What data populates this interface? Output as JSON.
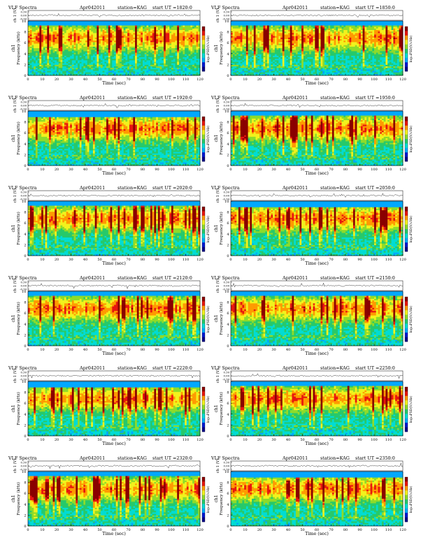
{
  "chart_data": [
    {
      "type": "heatmap",
      "title": "VLF Spectra",
      "date": "Apr042011",
      "station": "station=KAG",
      "start": "start  UT  =1820:0",
      "xlabel": "Time  (sec)",
      "ylabel_freq": "Frequency  (kHz)",
      "ylabel_ch": "ch1",
      "ylabel_v": "ch 1 (V)",
      "colorbar_label": "log₁₀PSD(V/√Hz)",
      "x_ticks": [
        "0",
        "10",
        "20",
        "30",
        "40",
        "50",
        "60",
        "70",
        "80",
        "90",
        "100",
        "110",
        "120"
      ],
      "y_ticks": [
        "0",
        "2",
        "4",
        "6",
        "8",
        "10"
      ],
      "v_ticks": [
        "0.30",
        "0.00",
        "-0.30"
      ],
      "xlim": [
        0,
        120
      ],
      "ylim": [
        0,
        10
      ]
    },
    {
      "type": "heatmap",
      "title": "VLF Spectra",
      "date": "Apr042011",
      "station": "station=KAG",
      "start": "start  UT  =1850:0",
      "xlabel": "Time  (sec)",
      "ylabel_freq": "Frequency  (kHz)",
      "ylabel_ch": "ch1",
      "ylabel_v": "ch 1 (V)",
      "colorbar_label": "log₁₀PSD(V/√Hz)",
      "x_ticks": [
        "0",
        "10",
        "20",
        "30",
        "40",
        "50",
        "60",
        "70",
        "80",
        "90",
        "100",
        "110",
        "120"
      ],
      "y_ticks": [
        "0",
        "2",
        "4",
        "6",
        "8",
        "10"
      ],
      "v_ticks": [
        "0.30",
        "0.00",
        "-0.30"
      ],
      "xlim": [
        0,
        120
      ],
      "ylim": [
        0,
        10
      ]
    },
    {
      "type": "heatmap",
      "title": "VLF Spectra",
      "date": "Apr042011",
      "station": "station=KAG",
      "start": "start  UT  =1920:0",
      "xlabel": "Time  (sec)",
      "ylabel_freq": "Frequency  (kHz)",
      "ylabel_ch": "ch1",
      "ylabel_v": "ch 1 (V)",
      "colorbar_label": "log₁₀PSD(V/√Hz)",
      "x_ticks": [
        "0",
        "10",
        "20",
        "30",
        "40",
        "50",
        "60",
        "70",
        "80",
        "90",
        "100",
        "110",
        "120"
      ],
      "y_ticks": [
        "0",
        "2",
        "4",
        "6",
        "8",
        "10"
      ],
      "v_ticks": [
        "0.30",
        "0.00",
        "-0.30"
      ],
      "xlim": [
        0,
        120
      ],
      "ylim": [
        0,
        10
      ]
    },
    {
      "type": "heatmap",
      "title": "VLF Spectra",
      "date": "Apr042011",
      "station": "station=KAG",
      "start": "start  UT  =1950:0",
      "xlabel": "Time  (sec)",
      "ylabel_freq": "Frequency  (kHz)",
      "ylabel_ch": "ch1",
      "ylabel_v": "ch 1 (V)",
      "colorbar_label": "log₁₀PSD(V/√Hz)",
      "x_ticks": [
        "0",
        "10",
        "20",
        "30",
        "40",
        "50",
        "60",
        "70",
        "80",
        "90",
        "100",
        "110",
        "120"
      ],
      "y_ticks": [
        "0",
        "2",
        "4",
        "6",
        "8",
        "10"
      ],
      "v_ticks": [
        "0.30",
        "0.00",
        "-0.30"
      ],
      "xlim": [
        0,
        120
      ],
      "ylim": [
        0,
        10
      ]
    },
    {
      "type": "heatmap",
      "title": "VLF Spectra",
      "date": "Apr042011",
      "station": "station=KAG",
      "start": "start  UT  =2020:0",
      "xlabel": "Time  (sec)",
      "ylabel_freq": "Frequency  (kHz)",
      "ylabel_ch": "ch1",
      "ylabel_v": "ch 1 (V)",
      "colorbar_label": "log₁₀PSD(V/√Hz)",
      "x_ticks": [
        "0",
        "10",
        "20",
        "30",
        "40",
        "50",
        "60",
        "70",
        "80",
        "90",
        "100",
        "110",
        "120"
      ],
      "y_ticks": [
        "0",
        "2",
        "4",
        "6",
        "8",
        "10"
      ],
      "v_ticks": [
        "0.30",
        "0.00",
        "-0.30"
      ],
      "xlim": [
        0,
        120
      ],
      "ylim": [
        0,
        10
      ]
    },
    {
      "type": "heatmap",
      "title": "VLF Spectra",
      "date": "Apr042011",
      "station": "station=KAG",
      "start": "start  UT  =2050:0",
      "xlabel": "Time  (sec)",
      "ylabel_freq": "Frequency  (kHz)",
      "ylabel_ch": "ch1",
      "ylabel_v": "ch 1 (V)",
      "colorbar_label": "log₁₀PSD(V/√Hz)",
      "x_ticks": [
        "0",
        "10",
        "20",
        "30",
        "40",
        "50",
        "60",
        "70",
        "80",
        "90",
        "100",
        "110",
        "120"
      ],
      "y_ticks": [
        "0",
        "2",
        "4",
        "6",
        "8",
        "10"
      ],
      "v_ticks": [
        "0.30",
        "0.00",
        "-0.30"
      ],
      "xlim": [
        0,
        120
      ],
      "ylim": [
        0,
        10
      ]
    },
    {
      "type": "heatmap",
      "title": "VLF Spectra",
      "date": "Apr042011",
      "station": "station=KAG",
      "start": "start  UT  =2120:0",
      "xlabel": "Time  (sec)",
      "ylabel_freq": "Frequency  (kHz)",
      "ylabel_ch": "ch1",
      "ylabel_v": "ch 1 (V)",
      "colorbar_label": "log₁₀PSD(V/√Hz)",
      "x_ticks": [
        "0",
        "10",
        "20",
        "30",
        "40",
        "50",
        "60",
        "70",
        "80",
        "90",
        "100",
        "110",
        "120"
      ],
      "y_ticks": [
        "0",
        "2",
        "4",
        "6",
        "8",
        "10"
      ],
      "v_ticks": [
        "0.30",
        "0.00",
        "-0.30"
      ],
      "xlim": [
        0,
        120
      ],
      "ylim": [
        0,
        10
      ]
    },
    {
      "type": "heatmap",
      "title": "VLF Spectra",
      "date": "Apr042011",
      "station": "station=KAG",
      "start": "start  UT  =2150:0",
      "xlabel": "Time  (sec)",
      "ylabel_freq": "Frequency  (kHz)",
      "ylabel_ch": "ch1",
      "ylabel_v": "ch 1 (V)",
      "colorbar_label": "log₁₀PSD(V/√Hz)",
      "x_ticks": [
        "0",
        "10",
        "20",
        "30",
        "40",
        "50",
        "60",
        "70",
        "80",
        "90",
        "100",
        "110",
        "120"
      ],
      "y_ticks": [
        "0",
        "2",
        "4",
        "6",
        "8",
        "10"
      ],
      "v_ticks": [
        "0.30",
        "0.00",
        "-0.30"
      ],
      "xlim": [
        0,
        120
      ],
      "ylim": [
        0,
        10
      ]
    },
    {
      "type": "heatmap",
      "title": "VLF Spectra",
      "date": "Apr042011",
      "station": "station=KAG",
      "start": "start  UT  =2220:0",
      "xlabel": "Time  (sec)",
      "ylabel_freq": "Frequency  (kHz)",
      "ylabel_ch": "ch1",
      "ylabel_v": "ch 1 (V)",
      "colorbar_label": "log₁₀PSD(V/√Hz)",
      "x_ticks": [
        "0",
        "10",
        "20",
        "30",
        "40",
        "50",
        "60",
        "70",
        "80",
        "90",
        "100",
        "110",
        "120"
      ],
      "y_ticks": [
        "0",
        "2",
        "4",
        "6",
        "8",
        "10"
      ],
      "v_ticks": [
        "0.30",
        "0.00",
        "-0.30"
      ],
      "xlim": [
        0,
        120
      ],
      "ylim": [
        0,
        10
      ]
    },
    {
      "type": "heatmap",
      "title": "VLF Spectra",
      "date": "Apr042011",
      "station": "station=KAG",
      "start": "start  UT  =2250:0",
      "xlabel": "Time  (sec)",
      "ylabel_freq": "Frequency  (kHz)",
      "ylabel_ch": "ch1",
      "ylabel_v": "ch 1 (V)",
      "colorbar_label": "log₁₀PSD(V/√Hz)",
      "x_ticks": [
        "0",
        "10",
        "20",
        "30",
        "40",
        "50",
        "60",
        "70",
        "80",
        "90",
        "100",
        "110",
        "120"
      ],
      "y_ticks": [
        "0",
        "2",
        "4",
        "6",
        "8",
        "10"
      ],
      "v_ticks": [
        "0.30",
        "0.00",
        "-0.30"
      ],
      "xlim": [
        0,
        120
      ],
      "ylim": [
        0,
        10
      ]
    },
    {
      "type": "heatmap",
      "title": "VLF Spectra",
      "date": "Apr042011",
      "station": "station=KAG",
      "start": "start  UT  =2320:0",
      "xlabel": "Time  (sec)",
      "ylabel_freq": "Frequency  (kHz)",
      "ylabel_ch": "ch1",
      "ylabel_v": "ch 1 (V)",
      "colorbar_label": "log₁₀PSD(V/√Hz)",
      "x_ticks": [
        "0",
        "10",
        "20",
        "30",
        "40",
        "50",
        "60",
        "70",
        "80",
        "90",
        "100",
        "110",
        "120"
      ],
      "y_ticks": [
        "0",
        "2",
        "4",
        "6",
        "8",
        "10"
      ],
      "v_ticks": [
        "0.30",
        "0.00",
        "-0.30"
      ],
      "xlim": [
        0,
        120
      ],
      "ylim": [
        0,
        10
      ]
    },
    {
      "type": "heatmap",
      "title": "VLF Spectra",
      "date": "Apr042011",
      "station": "station=KAG",
      "start": "start  UT  =2350:0",
      "xlabel": "Time  (sec)",
      "ylabel_freq": "Frequency  (kHz)",
      "ylabel_ch": "ch1",
      "ylabel_v": "ch 1 (V)",
      "colorbar_label": "log₁₀PSD(V/√Hz)",
      "x_ticks": [
        "0",
        "10",
        "20",
        "30",
        "40",
        "50",
        "60",
        "70",
        "80",
        "90",
        "100",
        "110",
        "120"
      ],
      "y_ticks": [
        "0",
        "2",
        "4",
        "6",
        "8",
        "10"
      ],
      "v_ticks": [
        "0.30",
        "0.00",
        "-0.30"
      ],
      "xlim": [
        0,
        120
      ],
      "ylim": [
        0,
        10
      ]
    }
  ],
  "colormap": [
    "#08008a",
    "#0018d0",
    "#00a8ff",
    "#00dcd4",
    "#27c96a",
    "#8edb2a",
    "#f2f21d",
    "#ff9a00",
    "#e8160f",
    "#8a0000"
  ]
}
